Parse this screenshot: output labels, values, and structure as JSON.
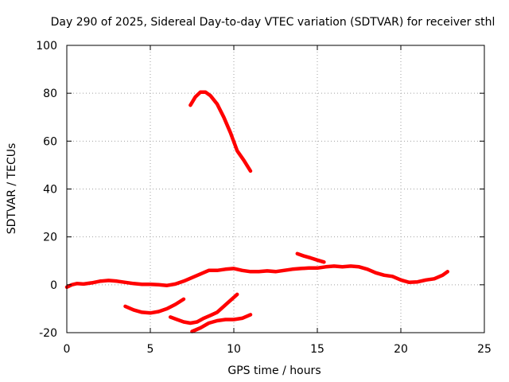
{
  "chart_data": {
    "type": "line",
    "title": "Day 290 of 2025, Sidereal Day-to-day VTEC variation (SDTVAR) for receiver sthl",
    "xlabel": "GPS time / hours",
    "ylabel": "SDTVAR / TECUs",
    "xlim": [
      0,
      25
    ],
    "ylim": [
      -20,
      100
    ],
    "xticks": [
      0,
      5,
      10,
      15,
      20,
      25
    ],
    "yticks": [
      -20,
      0,
      20,
      40,
      60,
      80,
      100
    ],
    "grid": true,
    "series_color": "#ff0000",
    "series": [
      {
        "name": "main-trace",
        "x": [
          0.0,
          0.3,
          0.6,
          1.0,
          1.5,
          2.0,
          2.5,
          3.0,
          3.5,
          4.0,
          4.5,
          5.0,
          5.5,
          6.0,
          6.5,
          7.0,
          7.5,
          8.0,
          8.5,
          9.0,
          9.5,
          10.0,
          10.5,
          11.0,
          11.5,
          12.0,
          12.5,
          13.0,
          13.5,
          14.0,
          14.5,
          15.0,
          15.5,
          16.0,
          16.5,
          17.0,
          17.5,
          18.0,
          18.5,
          19.0,
          19.5,
          20.0,
          20.5,
          21.0,
          21.5,
          22.0,
          22.5,
          22.8
        ],
        "y": [
          -1,
          0,
          0.5,
          0.3,
          0.8,
          1.5,
          1.8,
          1.5,
          1.0,
          0.5,
          0.2,
          0.2,
          0.0,
          -0.3,
          0.3,
          1.5,
          3.0,
          4.5,
          6.0,
          6.0,
          6.5,
          6.8,
          6.0,
          5.5,
          5.5,
          5.8,
          5.5,
          6.0,
          6.5,
          6.8,
          7.0,
          7.0,
          7.5,
          7.8,
          7.5,
          7.8,
          7.5,
          6.5,
          5.0,
          4.0,
          3.5,
          2.0,
          1.0,
          1.2,
          2.0,
          2.5,
          4.0,
          5.5
        ]
      },
      {
        "name": "peak-arc",
        "x": [
          7.4,
          7.7,
          8.0,
          8.3,
          8.6,
          9.0,
          9.4,
          9.8,
          10.2,
          10.6,
          11.0
        ],
        "y": [
          75,
          78.5,
          80.5,
          80.5,
          79,
          75.5,
          70,
          63.5,
          56,
          52,
          47.5
        ]
      },
      {
        "name": "neg-arc-a",
        "x": [
          3.5,
          4.0,
          4.5,
          5.0,
          5.5,
          6.0,
          6.5,
          7.0
        ],
        "y": [
          -9,
          -10.5,
          -11.5,
          -11.8,
          -11.2,
          -10,
          -8.2,
          -6
        ]
      },
      {
        "name": "neg-arc-b",
        "x": [
          6.2,
          6.6,
          7.0,
          7.4,
          7.8,
          8.2,
          8.6,
          9.0,
          9.4,
          9.8,
          10.2
        ],
        "y": [
          -13.5,
          -14.5,
          -15.5,
          -16,
          -15.5,
          -14,
          -12.8,
          -11.5,
          -9,
          -6.5,
          -4
        ]
      },
      {
        "name": "neg-arc-c",
        "x": [
          7.5,
          8.0,
          8.5,
          9.0,
          9.5,
          10.0,
          10.5,
          11.0
        ],
        "y": [
          -19.5,
          -18,
          -16,
          -15,
          -14.5,
          -14.5,
          -14,
          -12.5
        ]
      },
      {
        "name": "bump-1530",
        "x": [
          13.8,
          14.2,
          14.6,
          15.0,
          15.4
        ],
        "y": [
          13.0,
          12.0,
          11.2,
          10.3,
          9.5
        ]
      }
    ]
  }
}
